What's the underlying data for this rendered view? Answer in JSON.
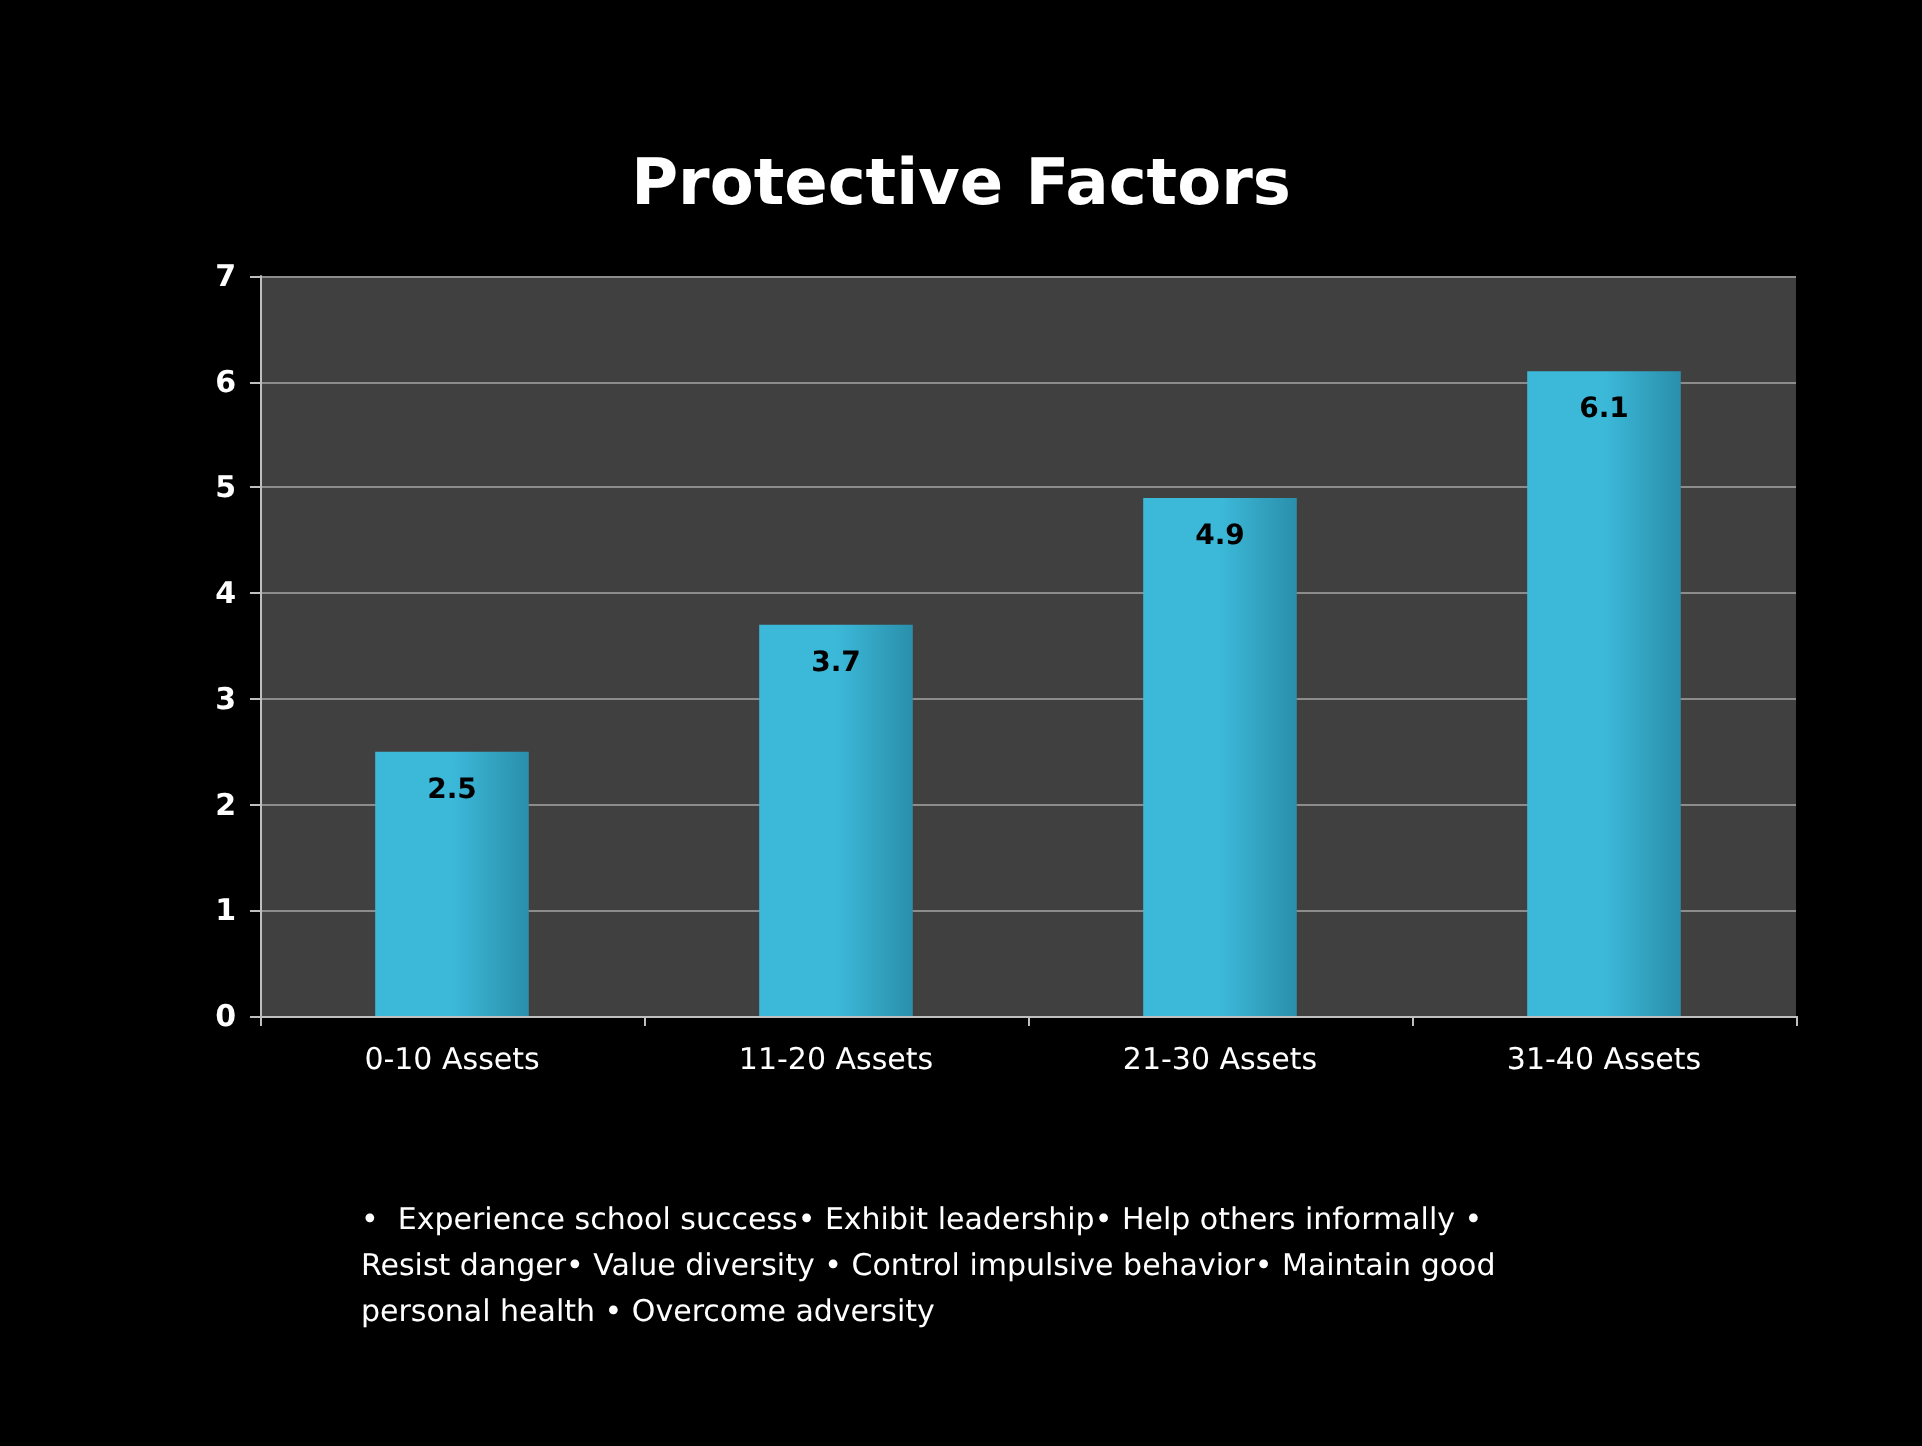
{
  "chart_data": {
    "type": "bar",
    "title": "Protective Factors",
    "categories": [
      "0-10 Assets",
      "11-20 Assets",
      "21-30 Assets",
      "31-40 Assets"
    ],
    "values": [
      2.5,
      3.7,
      4.9,
      6.1
    ],
    "color": "#3cb9d9",
    "ylim": [
      0,
      7
    ],
    "yticks": [
      0,
      1,
      2,
      3,
      4,
      5,
      6,
      7
    ],
    "grid": "y",
    "data_labels": true,
    "annotations": [
      "•  Experience school success• Exhibit leadership• Help others informally • Resist danger• Value diversity • Control impulsive behavior• Maintain good personal health • Overcome adversity"
    ]
  }
}
